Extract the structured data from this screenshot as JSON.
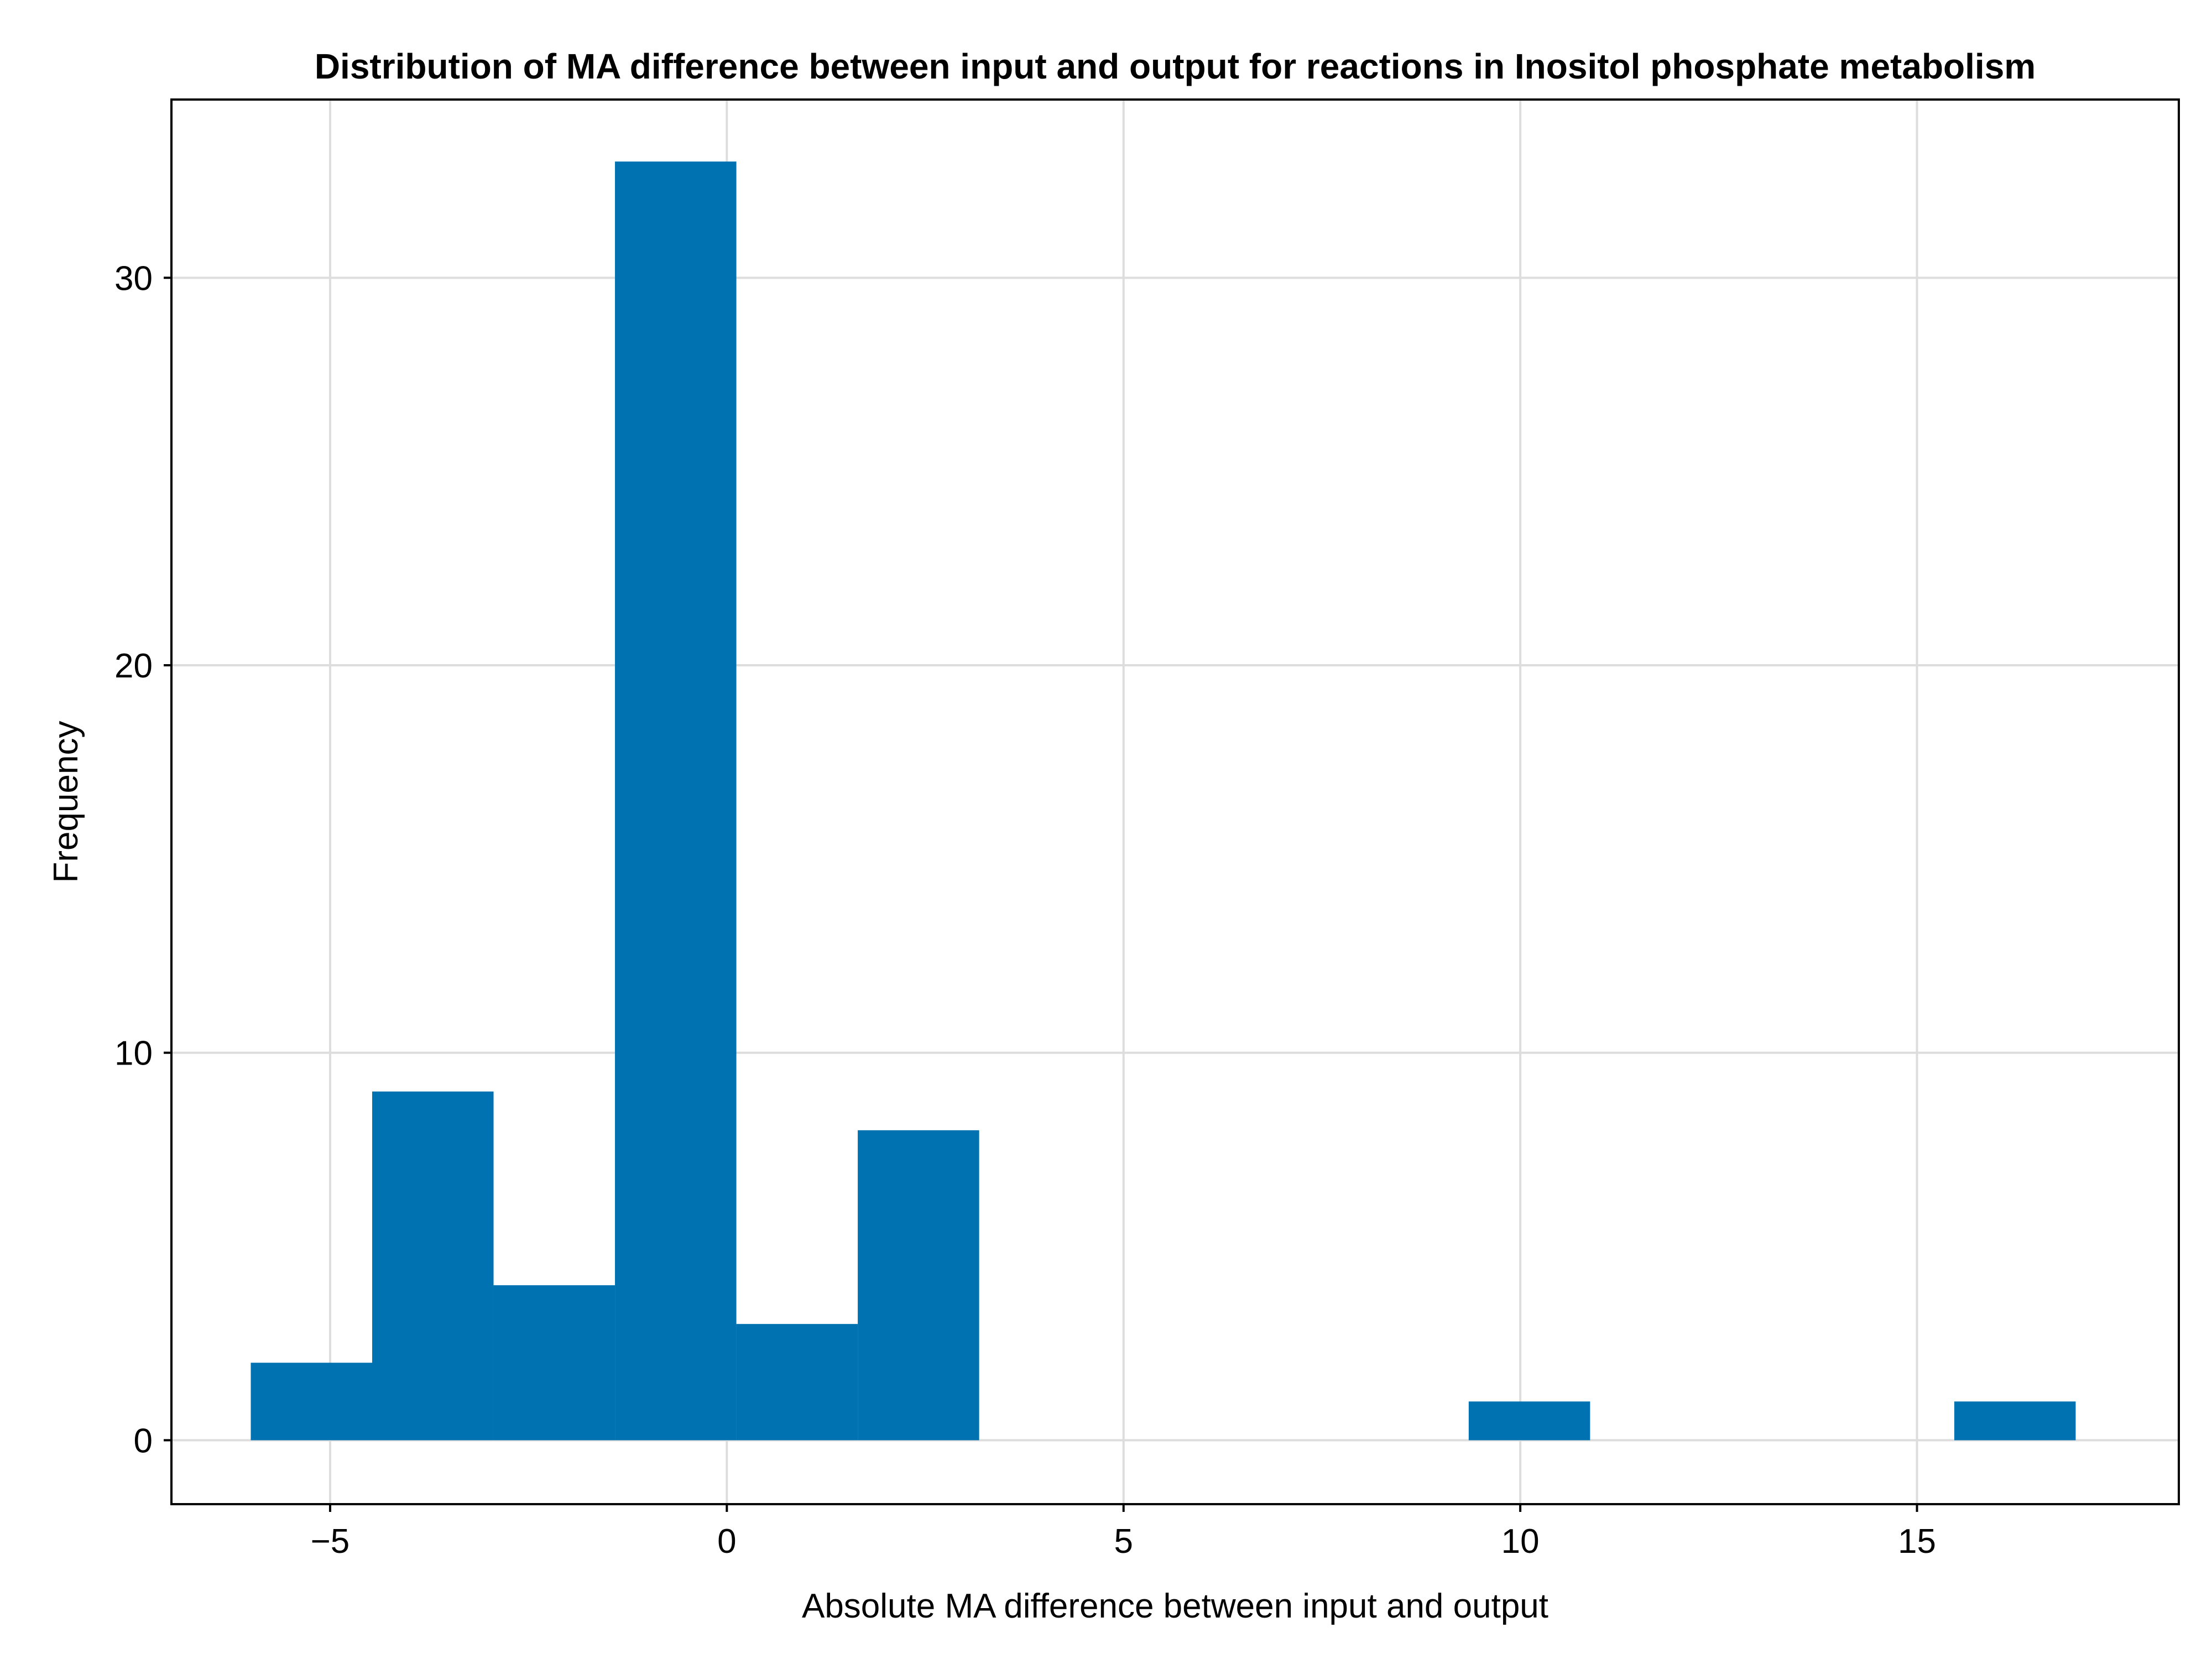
{
  "chart_data": {
    "type": "bar",
    "subtype": "histogram",
    "title": "Distribution of MA difference between input and output for reactions in Inositol phosphate metabolism",
    "xlabel": "Absolute MA difference between input and output",
    "ylabel": "Frequency",
    "xlim": [
      -7.0,
      18.3
    ],
    "ylim": [
      -1.65,
      34.6
    ],
    "xticks": [
      -5,
      0,
      5,
      10,
      15
    ],
    "xtick_labels": [
      "−5",
      "0",
      "5",
      "10",
      "15"
    ],
    "yticks": [
      0,
      10,
      20,
      30
    ],
    "ytick_labels": [
      "0",
      "10",
      "20",
      "30"
    ],
    "grid": true,
    "bar_color": "#0072b2",
    "bins": [
      {
        "x0": -6.0,
        "x1": -4.47,
        "count": 2
      },
      {
        "x0": -4.47,
        "x1": -2.94,
        "count": 9
      },
      {
        "x0": -2.94,
        "x1": -1.41,
        "count": 4
      },
      {
        "x0": -1.41,
        "x1": 0.12,
        "count": 33
      },
      {
        "x0": 0.12,
        "x1": 1.65,
        "count": 3
      },
      {
        "x0": 1.65,
        "x1": 3.18,
        "count": 8
      },
      {
        "x0": 9.35,
        "x1": 10.88,
        "count": 1
      },
      {
        "x0": 15.47,
        "x1": 17.0,
        "count": 1
      }
    ]
  }
}
